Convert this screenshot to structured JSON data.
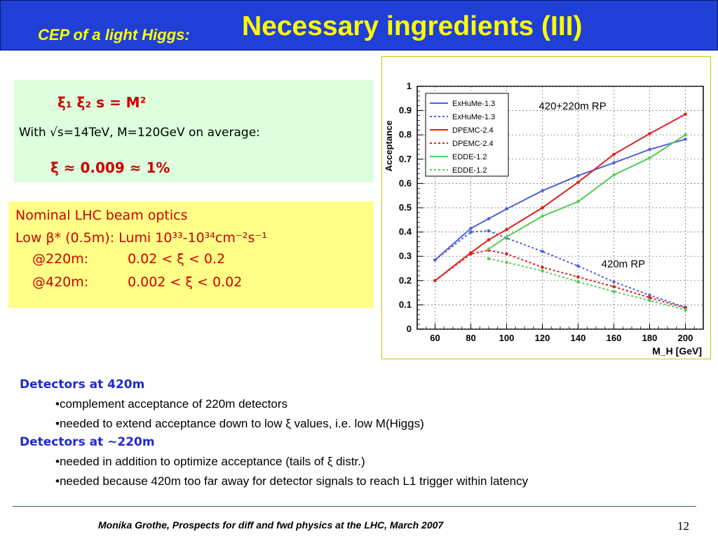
{
  "header": {
    "subtitle": "CEP of a light Higgs:",
    "title": "Necessary ingredients (III)"
  },
  "green_box": {
    "formula": "ξ₁ ξ₂ s = M²",
    "condition": "With √s=14TeV, M=120GeV on average:",
    "estimate": "ξ ≈ 0.009 ≈ 1%"
  },
  "yellow_box": {
    "line1": "Nominal LHC beam optics",
    "line2": "Low β* (0.5m): Lumi 10³³-10³⁴cm⁻²s⁻¹",
    "rows": [
      {
        "label": "@220m:",
        "range": "0.02 < ξ < 0.2"
      },
      {
        "label": "@420m:",
        "range": "0.002 < ξ < 0.02"
      }
    ]
  },
  "bottom": {
    "head1": "Detectors at 420m",
    "b1": "•complement acceptance of 220m detectors",
    "b2": "•needed to extend acceptance down to low ξ values, i.e. low M(Higgs)",
    "head2": "Detectors at ~220m",
    "b3": "•needed in addition to optimize acceptance (tails of ξ distr.)",
    "b4": "•needed because 420m too far away for detector signals to reach L1 trigger within latency"
  },
  "footer": {
    "text": "Monika Grothe, Prospects for diff and fwd physics at the LHC, March 2007",
    "page": "12"
  },
  "chart_data": {
    "type": "line",
    "xlabel": "M_H [GeV]",
    "ylabel": "Acceptance",
    "xlim": [
      50,
      210
    ],
    "ylim": [
      0,
      1
    ],
    "x_ticks": [
      60,
      80,
      100,
      120,
      140,
      160,
      180,
      200
    ],
    "y_ticks": [
      0,
      0.1,
      0.2,
      0.3,
      0.4,
      0.5,
      0.6,
      0.7,
      0.8,
      0.9,
      1
    ],
    "grid": true,
    "legend_position": "top-left",
    "annotations": [
      "420+220m RP",
      "420m RP"
    ],
    "series": [
      {
        "name": "ExHuMe-1.3",
        "color": "#5060d8",
        "style": "solid",
        "points": [
          [
            60,
            0.285
          ],
          [
            80,
            0.415
          ],
          [
            90,
            0.455
          ],
          [
            100,
            0.495
          ],
          [
            120,
            0.57
          ],
          [
            140,
            0.632
          ],
          [
            160,
            0.685
          ],
          [
            180,
            0.74
          ],
          [
            200,
            0.782
          ]
        ]
      },
      {
        "name": "ExHuMe-1.3",
        "color": "#5060d8",
        "style": "dotted",
        "points": [
          [
            60,
            0.285
          ],
          [
            80,
            0.4
          ],
          [
            90,
            0.405
          ],
          [
            100,
            0.375
          ],
          [
            120,
            0.32
          ],
          [
            140,
            0.26
          ],
          [
            160,
            0.195
          ],
          [
            180,
            0.14
          ],
          [
            200,
            0.09
          ]
        ]
      },
      {
        "name": "DPEMC-2.4",
        "color": "#e02020",
        "style": "solid",
        "points": [
          [
            60,
            0.2
          ],
          [
            80,
            0.315
          ],
          [
            90,
            0.368
          ],
          [
            100,
            0.41
          ],
          [
            120,
            0.5
          ],
          [
            140,
            0.605
          ],
          [
            160,
            0.72
          ],
          [
            180,
            0.805
          ],
          [
            200,
            0.885
          ]
        ]
      },
      {
        "name": "DPEMC-2.4",
        "color": "#e02020",
        "style": "dotted",
        "points": [
          [
            60,
            0.2
          ],
          [
            80,
            0.31
          ],
          [
            90,
            0.325
          ],
          [
            100,
            0.31
          ],
          [
            120,
            0.255
          ],
          [
            140,
            0.215
          ],
          [
            160,
            0.175
          ],
          [
            180,
            0.13
          ],
          [
            200,
            0.087
          ]
        ]
      },
      {
        "name": "EDDE-1.2",
        "color": "#55cc55",
        "style": "solid",
        "points": [
          [
            90,
            0.33
          ],
          [
            100,
            0.38
          ],
          [
            120,
            0.465
          ],
          [
            140,
            0.525
          ],
          [
            160,
            0.635
          ],
          [
            180,
            0.705
          ],
          [
            200,
            0.8
          ]
        ]
      },
      {
        "name": "EDDE-1.2",
        "color": "#55cc55",
        "style": "dotted",
        "points": [
          [
            90,
            0.29
          ],
          [
            100,
            0.275
          ],
          [
            120,
            0.24
          ],
          [
            140,
            0.195
          ],
          [
            160,
            0.155
          ],
          [
            180,
            0.118
          ],
          [
            200,
            0.08
          ]
        ]
      }
    ]
  }
}
